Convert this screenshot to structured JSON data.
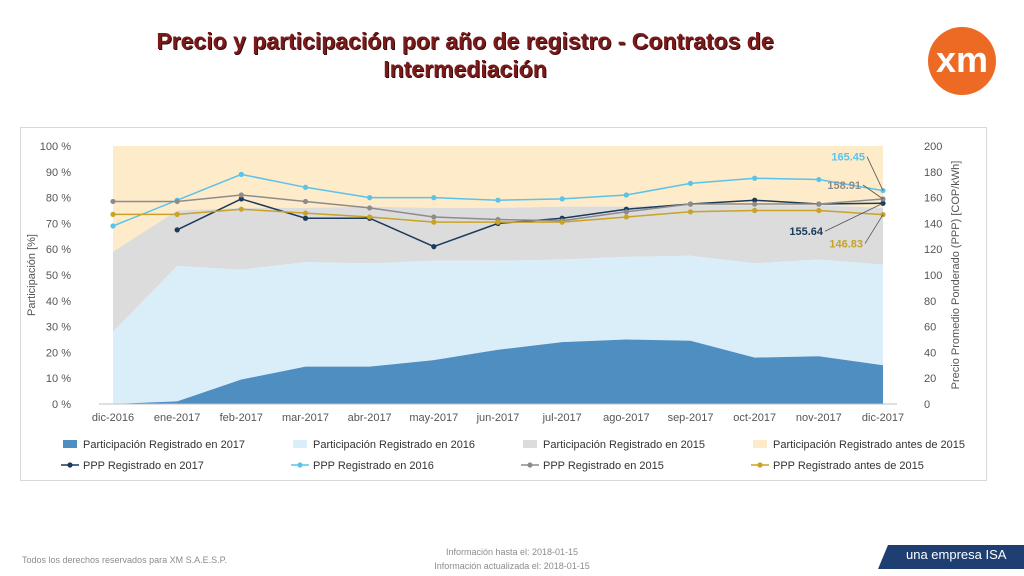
{
  "header": {
    "title_line1": "Precio y participación por año de registro - Contratos de",
    "title_line2": "Intermediación",
    "logo_text": "xm"
  },
  "colors": {
    "reg2017_area": "#4f8ec0",
    "reg2016_area": "#daeef9",
    "reg2015_area": "#dcdcdc",
    "before2015_area": "#fdebc9",
    "ppp2017": "#1b3a5c",
    "ppp2016": "#5bc3ea",
    "ppp2015": "#8c8c8c",
    "pppBefore2015": "#c9a227",
    "title": "#7a1a1a",
    "logo": "#ec6a23",
    "brand_bar": "#1f3f72"
  },
  "chart_data": {
    "type": "area+line",
    "categories": [
      "dic-2016",
      "ene-2017",
      "feb-2017",
      "mar-2017",
      "abr-2017",
      "may-2017",
      "jun-2017",
      "jul-2017",
      "ago-2017",
      "sep-2017",
      "oct-2017",
      "nov-2017",
      "dic-2017"
    ],
    "y_left": {
      "label": "Participación [%]",
      "min": 0,
      "max": 100,
      "ticks": [
        "0 %",
        "10 %",
        "20 %",
        "30 %",
        "40 %",
        "50 %",
        "60 %",
        "70 %",
        "80 %",
        "90 %",
        "100 %"
      ]
    },
    "y_right": {
      "label": "Precio Promedio Ponderado (PPP) [COP/kWh]",
      "min": 0,
      "max": 200,
      "ticks": [
        "0",
        "20",
        "40",
        "60",
        "80",
        "100",
        "120",
        "140",
        "160",
        "180",
        "200"
      ]
    },
    "area_series": [
      {
        "name": "Participación Registrado en  2017",
        "cumulative": [
          0,
          1,
          9.5,
          14.5,
          14.5,
          17,
          21,
          24,
          25,
          24.5,
          18,
          18.5,
          15
        ]
      },
      {
        "name": "Participación Registrado en  2016",
        "cumulative": [
          28,
          53.5,
          52,
          55,
          54.5,
          55.5,
          55.5,
          56,
          57,
          57.5,
          54.5,
          56,
          54
        ]
      },
      {
        "name": "Participación Registrado en  2015",
        "cumulative": [
          59,
          75,
          76,
          76,
          76.5,
          76,
          76,
          76.5,
          76.5,
          77,
          77,
          77,
          76
        ]
      },
      {
        "name": "Participación Registrado antes de  2015",
        "cumulative": [
          100,
          100,
          100,
          100,
          100,
          100,
          100,
          100,
          100,
          100,
          100,
          100,
          100
        ]
      }
    ],
    "line_series": [
      {
        "name": "PPP Registrado en  2017",
        "values": [
          null,
          135,
          159,
          144,
          144,
          122,
          140,
          144,
          151,
          155,
          158,
          155,
          155.64
        ]
      },
      {
        "name": "PPP Registrado en  2016",
        "values": [
          138,
          158,
          178,
          168,
          160,
          160,
          158,
          159,
          162,
          171,
          175,
          174,
          165.45
        ]
      },
      {
        "name": "PPP Registrado en  2015",
        "values": [
          157,
          157,
          162,
          157,
          152,
          145,
          143,
          142,
          149,
          155,
          155,
          155,
          158.91
        ]
      },
      {
        "name": "PPP Registrado antes de  2015",
        "values": [
          147,
          147,
          151,
          148,
          145,
          141,
          141,
          141,
          145,
          149,
          150,
          150,
          146.83
        ]
      }
    ],
    "annotations": [
      {
        "series": "PPP Registrado en  2016",
        "text": "165.45"
      },
      {
        "series": "PPP Registrado en  2015",
        "text": "158.91"
      },
      {
        "series": "PPP Registrado en  2017",
        "text": "155.64"
      },
      {
        "series": "PPP Registrado antes de  2015",
        "text": "146.83"
      }
    ],
    "legend_position": "bottom"
  },
  "footer": {
    "rights": "Todos los derechos reservados para XM S.A.E.S.P.",
    "info_until": "Información hasta el: 2018-01-15",
    "info_updated": "Información actualizada el: 2018-01-15",
    "brand": "una empresa ISA"
  }
}
